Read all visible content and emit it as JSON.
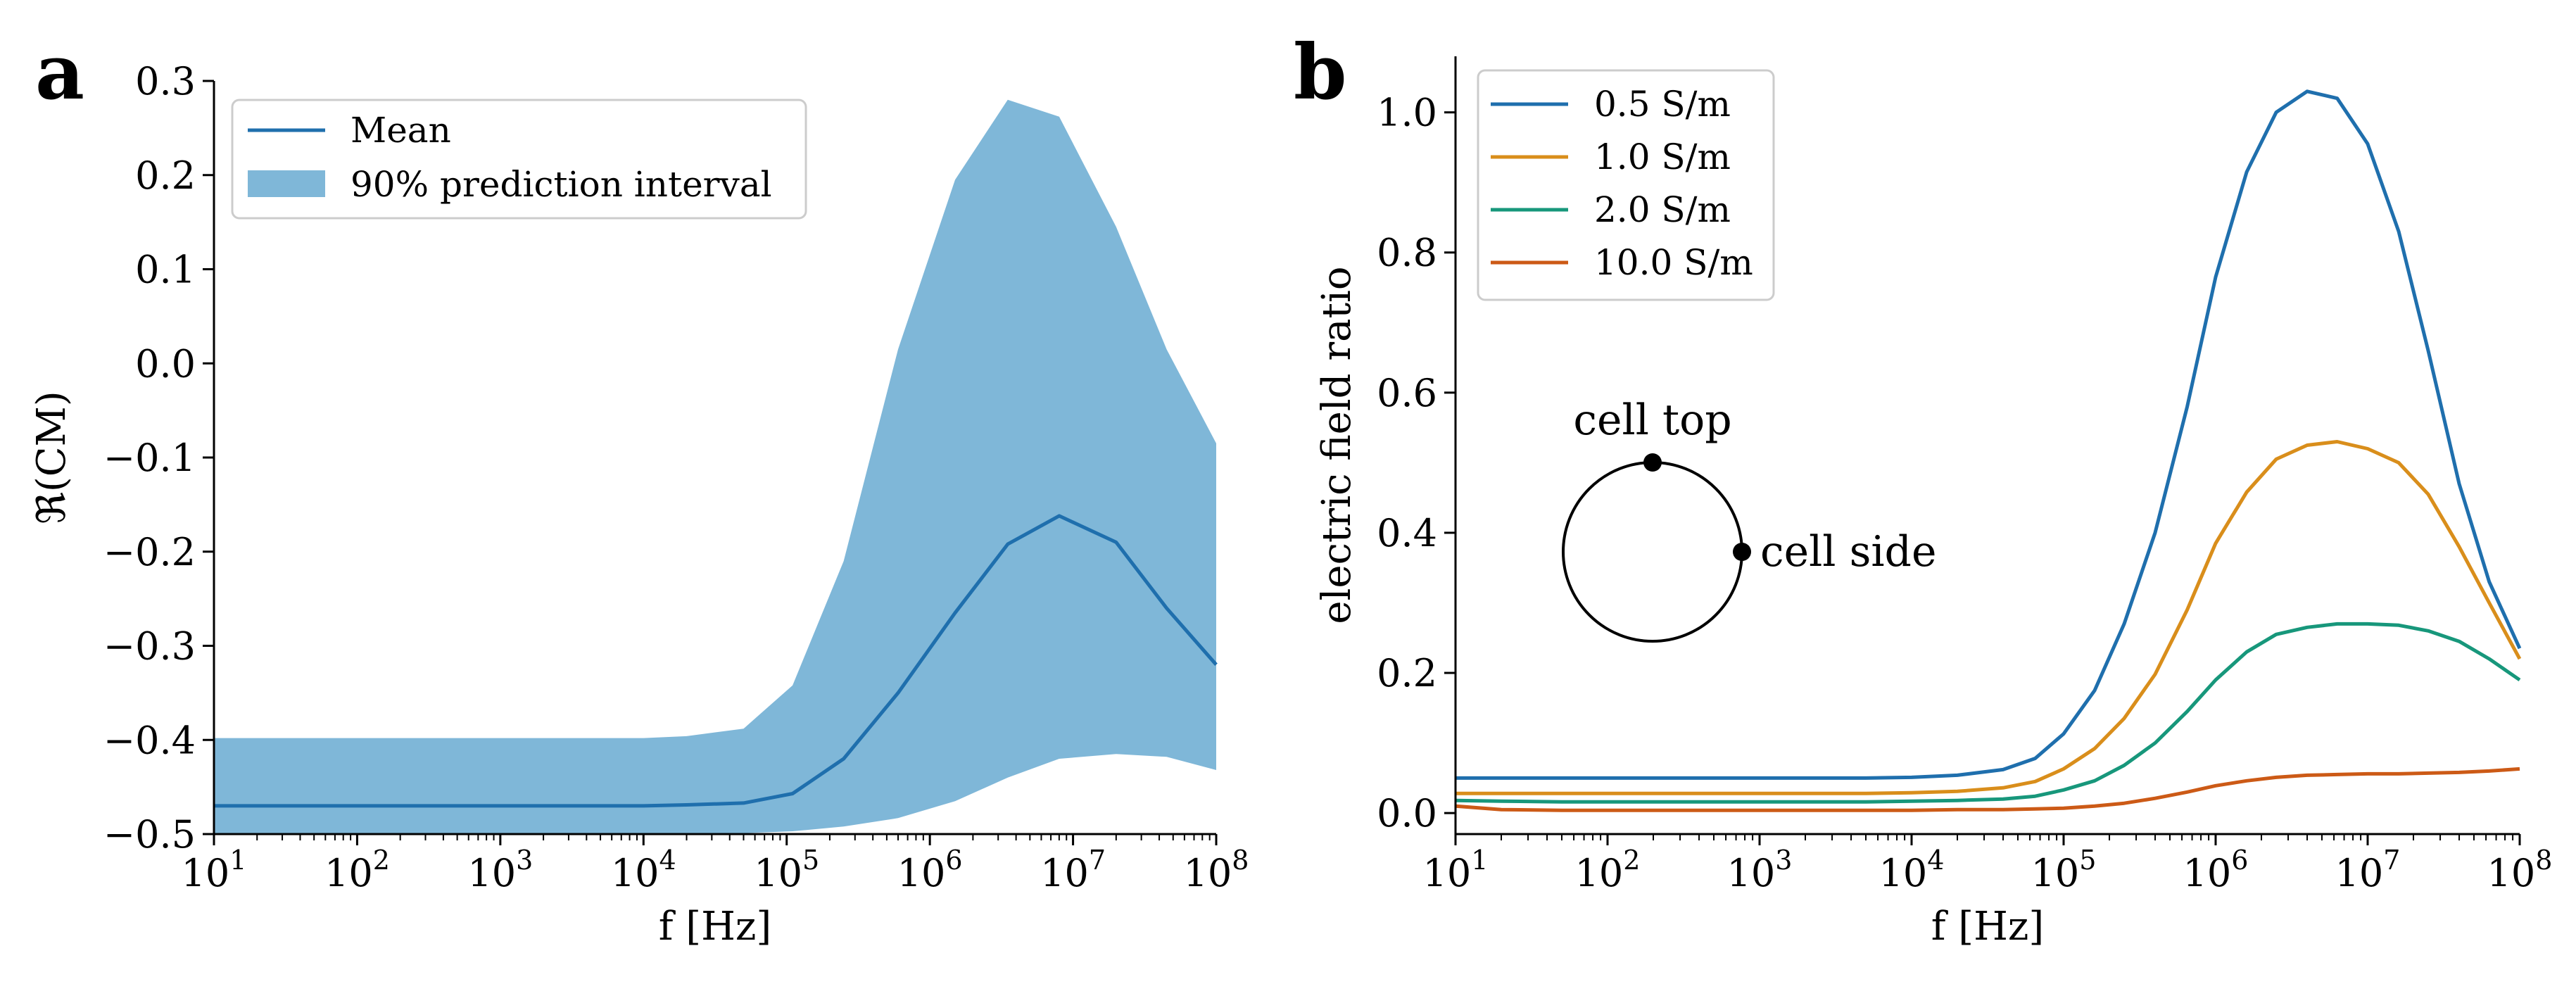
{
  "chart_data": [
    {
      "panel_label": "a",
      "type": "line",
      "xscale": "log",
      "xlabel": "f [Hz]",
      "ylabel": "ℜ(CM)",
      "xlim": [
        10,
        100000000
      ],
      "ylim": [
        -0.5,
        0.3
      ],
      "x_ticks": [
        10,
        100,
        1000,
        10000,
        100000,
        1000000,
        10000000,
        100000000
      ],
      "x_tick_labels": [
        [
          "10",
          "1"
        ],
        [
          "10",
          "2"
        ],
        [
          "10",
          "3"
        ],
        [
          "10",
          "4"
        ],
        [
          "10",
          "5"
        ],
        [
          "10",
          "6"
        ],
        [
          "10",
          "7"
        ],
        [
          "10",
          "8"
        ]
      ],
      "y_ticks": [
        -0.5,
        -0.4,
        -0.3,
        -0.2,
        -0.1,
        0.0,
        0.1,
        0.2,
        0.3
      ],
      "y_tick_labels": [
        "−0.5",
        "−0.4",
        "−0.3",
        "−0.2",
        "−0.1",
        "0.0",
        "0.1",
        "0.2",
        "0.3"
      ],
      "legend": [
        "Mean",
        "90% prediction interval"
      ],
      "legend_position": "top-left",
      "colors": {
        "mean": "#1f6fad",
        "band": "#7fb7d8"
      },
      "x": [
        10,
        20,
        50,
        100,
        200,
        500,
        1000,
        2000,
        5000,
        10000,
        20000,
        50000,
        110000,
        250000,
        600000,
        1500000,
        3500000,
        8000000,
        20000000,
        45000000,
        100000000
      ],
      "series": [
        {
          "name": "Mean",
          "values": [
            -0.47,
            -0.47,
            -0.47,
            -0.47,
            -0.47,
            -0.47,
            -0.47,
            -0.47,
            -0.47,
            -0.47,
            -0.469,
            -0.467,
            -0.457,
            -0.42,
            -0.35,
            -0.265,
            -0.192,
            -0.162,
            -0.19,
            -0.26,
            -0.32
          ]
        },
        {
          "name": "90% prediction interval (lower)",
          "values": [
            -0.5,
            -0.5,
            -0.5,
            -0.5,
            -0.5,
            -0.5,
            -0.5,
            -0.5,
            -0.5,
            -0.5,
            -0.5,
            -0.499,
            -0.497,
            -0.492,
            -0.483,
            -0.465,
            -0.44,
            -0.42,
            -0.415,
            -0.418,
            -0.432
          ]
        },
        {
          "name": "90% prediction interval (upper)",
          "values": [
            -0.398,
            -0.398,
            -0.398,
            -0.398,
            -0.398,
            -0.398,
            -0.398,
            -0.398,
            -0.398,
            -0.398,
            -0.396,
            -0.388,
            -0.342,
            -0.21,
            0.015,
            0.195,
            0.28,
            0.262,
            0.145,
            0.015,
            -0.085
          ]
        }
      ]
    },
    {
      "panel_label": "b",
      "type": "line",
      "xscale": "log",
      "xlabel": "f [Hz]",
      "ylabel": "electric field ratio",
      "xlim": [
        10,
        100000000
      ],
      "ylim": [
        -0.03,
        1.08
      ],
      "x_ticks": [
        10,
        100,
        1000,
        10000,
        100000,
        1000000,
        10000000,
        100000000
      ],
      "x_tick_labels": [
        [
          "10",
          "1"
        ],
        [
          "10",
          "2"
        ],
        [
          "10",
          "3"
        ],
        [
          "10",
          "4"
        ],
        [
          "10",
          "5"
        ],
        [
          "10",
          "6"
        ],
        [
          "10",
          "7"
        ],
        [
          "10",
          "8"
        ]
      ],
      "y_ticks": [
        0.0,
        0.2,
        0.4,
        0.6,
        0.8,
        1.0
      ],
      "y_tick_labels": [
        "0.0",
        "0.2",
        "0.4",
        "0.6",
        "0.8",
        "1.0"
      ],
      "legend": [
        "0.5 S/m",
        "1.0 S/m",
        "2.0 S/m",
        "10.0 S/m"
      ],
      "legend_position": "top-left",
      "annotations": [
        "cell top",
        "cell side"
      ],
      "x": [
        10,
        20,
        50,
        100,
        500,
        1000,
        5000,
        10000,
        20000,
        40000,
        65000,
        100000,
        160000,
        250000,
        400000,
        650000,
        1000000,
        1600000,
        2500000,
        4000000,
        6300000,
        10000000,
        16000000,
        25000000,
        40000000,
        63000000,
        100000000
      ],
      "series": [
        {
          "name": "0.5 S/m",
          "color": "#1f6fad",
          "values": [
            0.05,
            0.05,
            0.05,
            0.05,
            0.05,
            0.05,
            0.05,
            0.051,
            0.054,
            0.062,
            0.078,
            0.113,
            0.175,
            0.27,
            0.4,
            0.58,
            0.765,
            0.915,
            1.0,
            1.03,
            1.02,
            0.955,
            0.83,
            0.66,
            0.47,
            0.33,
            0.235
          ]
        },
        {
          "name": "1.0 S/m",
          "color": "#d98e1b",
          "values": [
            0.028,
            0.028,
            0.028,
            0.028,
            0.028,
            0.028,
            0.028,
            0.029,
            0.031,
            0.036,
            0.045,
            0.063,
            0.092,
            0.135,
            0.198,
            0.29,
            0.385,
            0.458,
            0.505,
            0.525,
            0.53,
            0.52,
            0.5,
            0.455,
            0.38,
            0.3,
            0.22
          ]
        },
        {
          "name": "2.0 S/m",
          "color": "#17977b",
          "values": [
            0.018,
            0.017,
            0.016,
            0.016,
            0.016,
            0.016,
            0.016,
            0.017,
            0.018,
            0.02,
            0.024,
            0.033,
            0.046,
            0.068,
            0.1,
            0.145,
            0.19,
            0.23,
            0.255,
            0.265,
            0.27,
            0.27,
            0.268,
            0.26,
            0.245,
            0.22,
            0.19
          ]
        },
        {
          "name": "10.0 S/m",
          "color": "#cc5a16",
          "values": [
            0.01,
            0.005,
            0.004,
            0.004,
            0.004,
            0.004,
            0.004,
            0.004,
            0.005,
            0.005,
            0.006,
            0.007,
            0.01,
            0.014,
            0.021,
            0.03,
            0.039,
            0.046,
            0.051,
            0.054,
            0.055,
            0.056,
            0.056,
            0.057,
            0.058,
            0.06,
            0.063
          ]
        }
      ]
    }
  ]
}
